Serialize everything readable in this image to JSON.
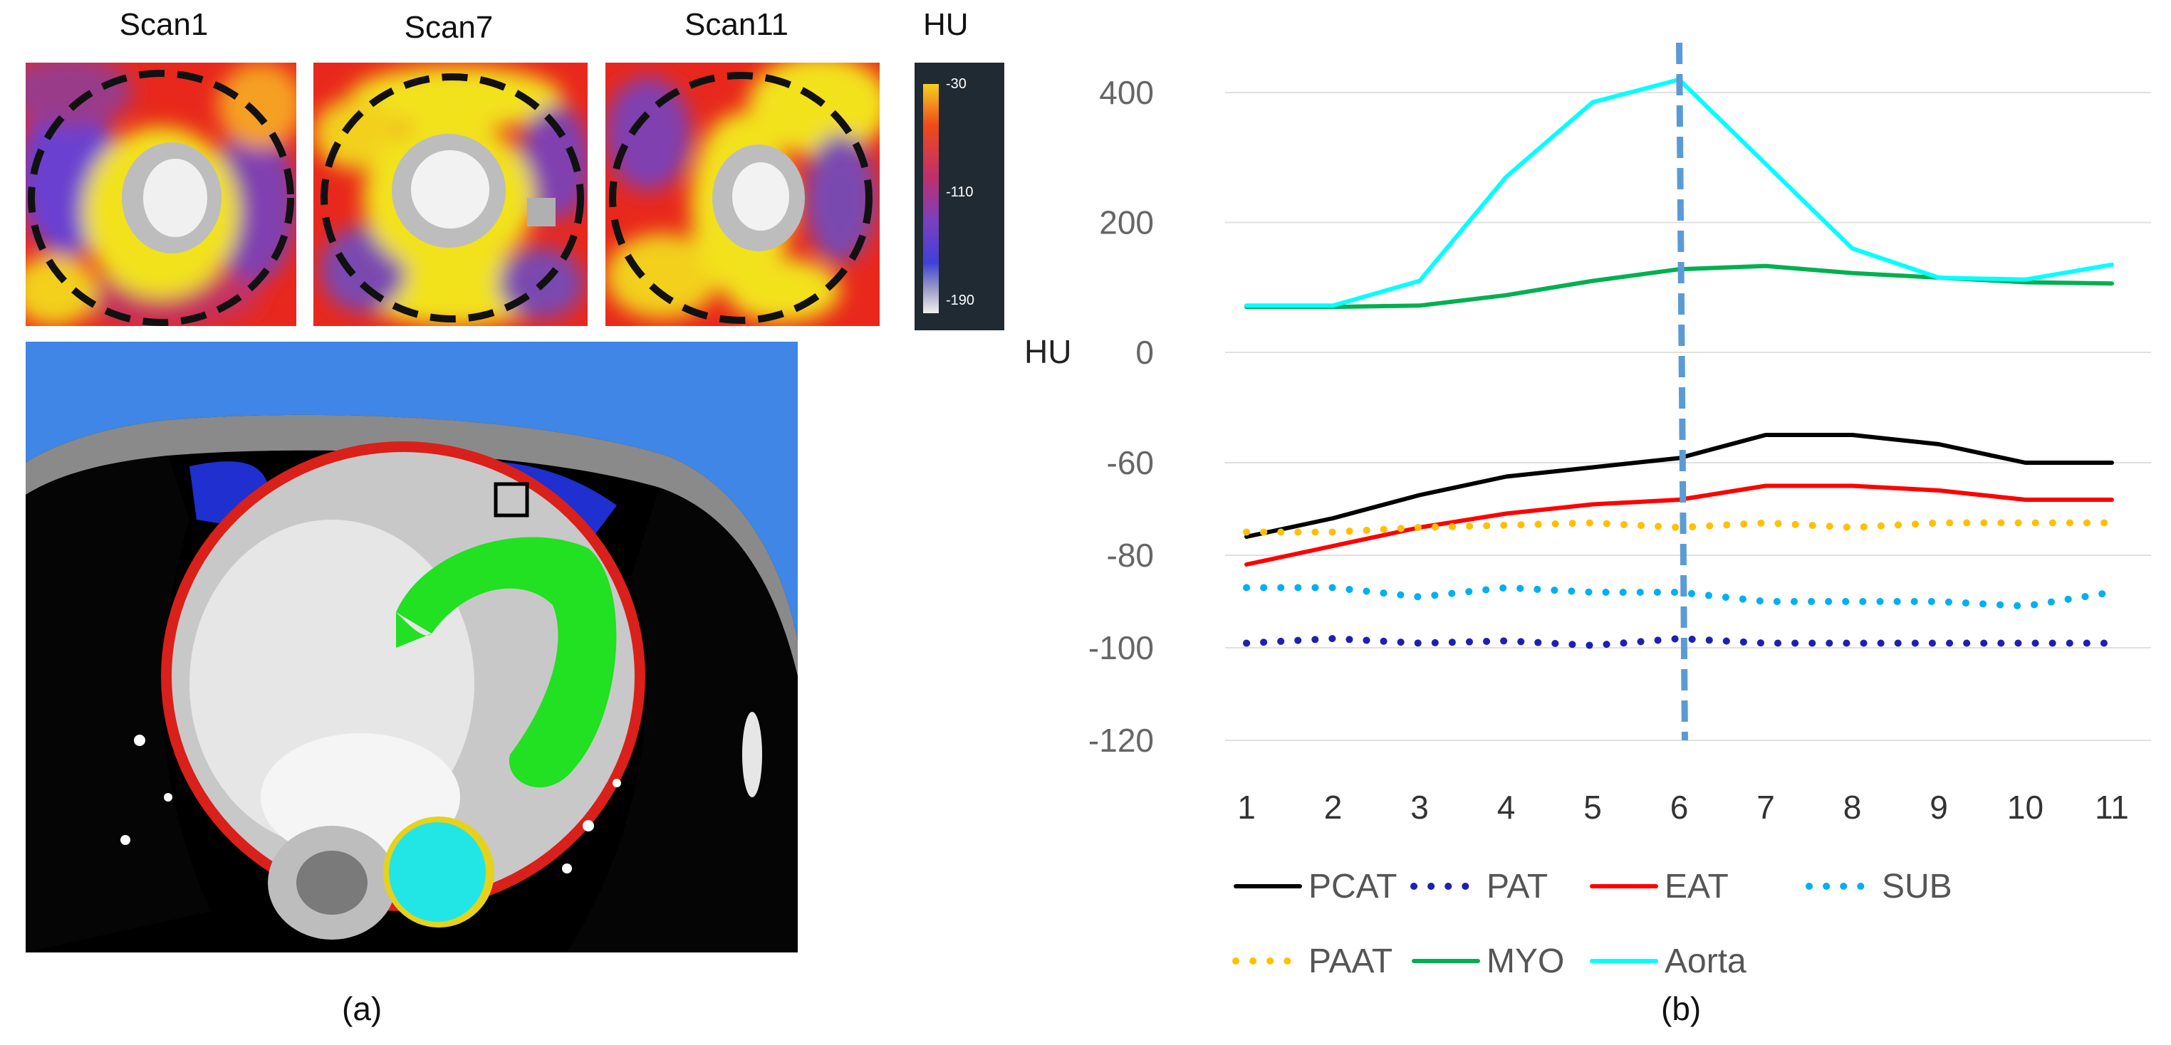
{
  "panel_a": {
    "label": "(a)",
    "scans": [
      "Scan1",
      "Scan7",
      "Scan11"
    ],
    "colorbar": {
      "title": "HU",
      "ticks": [
        "-30",
        "-110",
        "-190"
      ]
    },
    "segment_colors": {
      "subcutaneous": "#3f86e6",
      "paracardial": "#1f2fd0",
      "epicardial": "#d9201a",
      "myocardium": "#22e022",
      "aorta": "#22e6e6",
      "aorta_rim": "#e6d21a"
    }
  },
  "panel_b": {
    "label": "(b)"
  },
  "chart_data": {
    "type": "line",
    "ylabel": "HU",
    "x": [
      1,
      2,
      3,
      4,
      5,
      6,
      7,
      8,
      9,
      10,
      11
    ],
    "x_tick_labels": [
      "1",
      "2",
      "3",
      "4",
      "5",
      "6",
      "7",
      "8",
      "9",
      "10",
      "11"
    ],
    "y_axis": {
      "note": "broken axis",
      "upper_ticks": [
        400,
        200,
        0
      ],
      "lower_ticks": [
        -60,
        -80,
        -100,
        -120
      ],
      "upper_range": [
        0,
        430
      ],
      "lower_range": [
        -125,
        -35
      ]
    },
    "marker_line": {
      "x": 6,
      "style": "dashed",
      "color": "#5b9bd5"
    },
    "grid": true,
    "legend_position": "bottom",
    "series": [
      {
        "name": "PCAT",
        "color": "#000000",
        "dash": "solid",
        "values": [
          -76,
          -72,
          -67,
          -63,
          -61,
          -59,
          -54,
          -54,
          -56,
          -60,
          -60
        ]
      },
      {
        "name": "PAT",
        "color": "#1f1fb4",
        "dash": "dotted",
        "values": [
          -99,
          -98,
          -99,
          -98.5,
          -99.5,
          -98,
          -99,
          -99,
          -99,
          -99,
          -99
        ]
      },
      {
        "name": "EAT",
        "color": "#ff0000",
        "dash": "solid",
        "values": [
          -82,
          -78,
          -74,
          -71,
          -69,
          -68,
          -65,
          -65,
          -66,
          -68,
          -68
        ]
      },
      {
        "name": "SUB",
        "color": "#00b0f0",
        "dash": "dotted",
        "values": [
          -87,
          -87,
          -89,
          -87,
          -88,
          -88,
          -90,
          -90,
          -90,
          -91,
          -88
        ]
      },
      {
        "name": "PAAT",
        "color": "#ffc000",
        "dash": "dotted",
        "values": [
          -75,
          -75,
          -74,
          -73.5,
          -73,
          -74,
          -73,
          -74,
          -73,
          -73,
          -73
        ]
      },
      {
        "name": "MYO",
        "color": "#00b050",
        "dash": "solid",
        "values": [
          70,
          70,
          72,
          88,
          110,
          128,
          133,
          122,
          115,
          108,
          106
        ]
      },
      {
        "name": "Aorta",
        "color": "#00ffff",
        "dash": "solid",
        "values": [
          72,
          72,
          110,
          270,
          385,
          420,
          290,
          160,
          115,
          112,
          135
        ]
      }
    ]
  }
}
